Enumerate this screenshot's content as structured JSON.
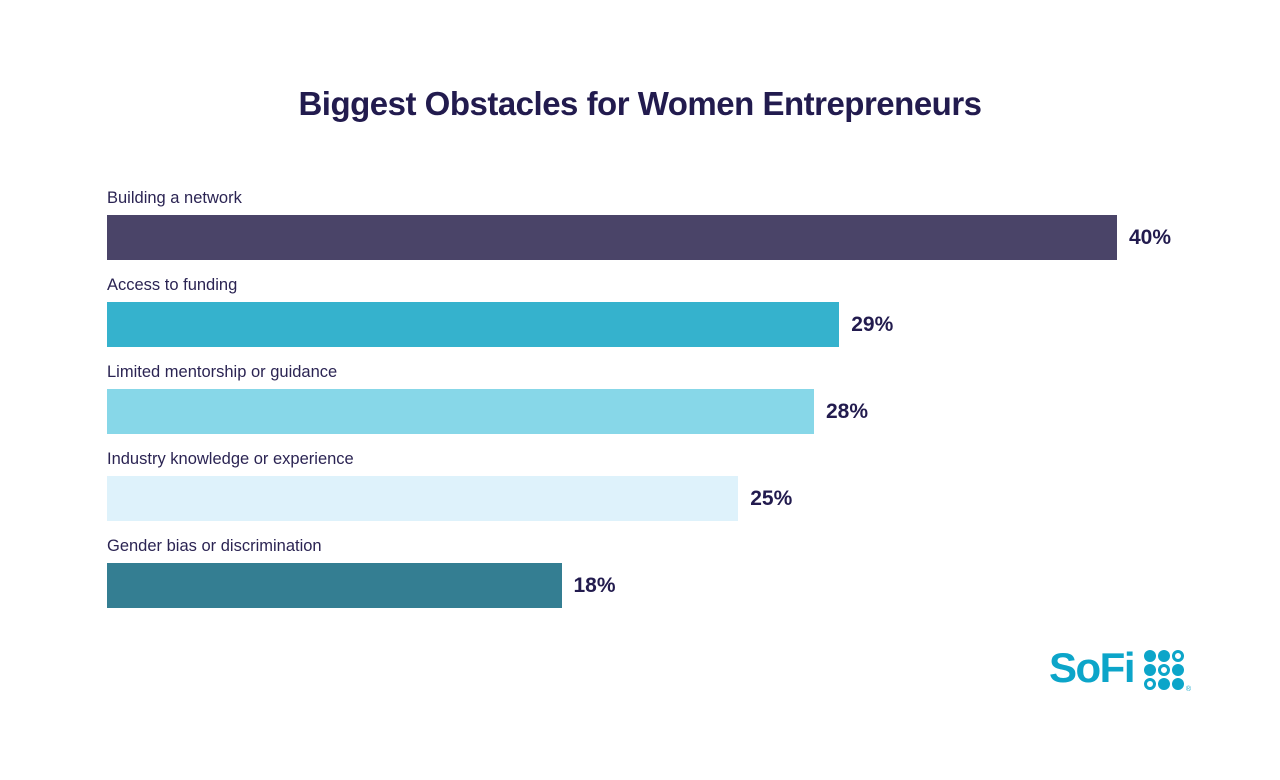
{
  "title": "Biggest Obstacles for Women Entrepreneurs",
  "colors": {
    "background": "#FFFFFF",
    "title_text": "#221B4E",
    "label_text": "#2B2453",
    "value_text": "#221B4E",
    "logo_accent": "#0CA5C9"
  },
  "chart_data": {
    "type": "bar",
    "orientation": "horizontal",
    "title": "Biggest Obstacles for Women Entrepreneurs",
    "categories": [
      "Building a network",
      "Access to funding",
      "Limited mentorship or guidance",
      "Industry knowledge or experience",
      "Gender bias or discrimination"
    ],
    "values": [
      40,
      29,
      28,
      25,
      18
    ],
    "value_labels": [
      "40%",
      "29%",
      "28%",
      "25%",
      "18%"
    ],
    "bar_colors": [
      "#4A4468",
      "#35B2CD",
      "#87D7E8",
      "#DEF2FB",
      "#347E92"
    ],
    "xlabel": "",
    "ylabel": "",
    "xlim": [
      0,
      40
    ],
    "grid": false,
    "legend": false,
    "value_label_position": "right-of-bar",
    "category_label_position": "above-bar"
  },
  "logo": {
    "text": "SoFi",
    "registered_mark": "®",
    "dots_icon": "sofi-dot-grid",
    "dot_pattern": [
      [
        1,
        1,
        0
      ],
      [
        1,
        0,
        1
      ],
      [
        0,
        1,
        1
      ]
    ]
  }
}
